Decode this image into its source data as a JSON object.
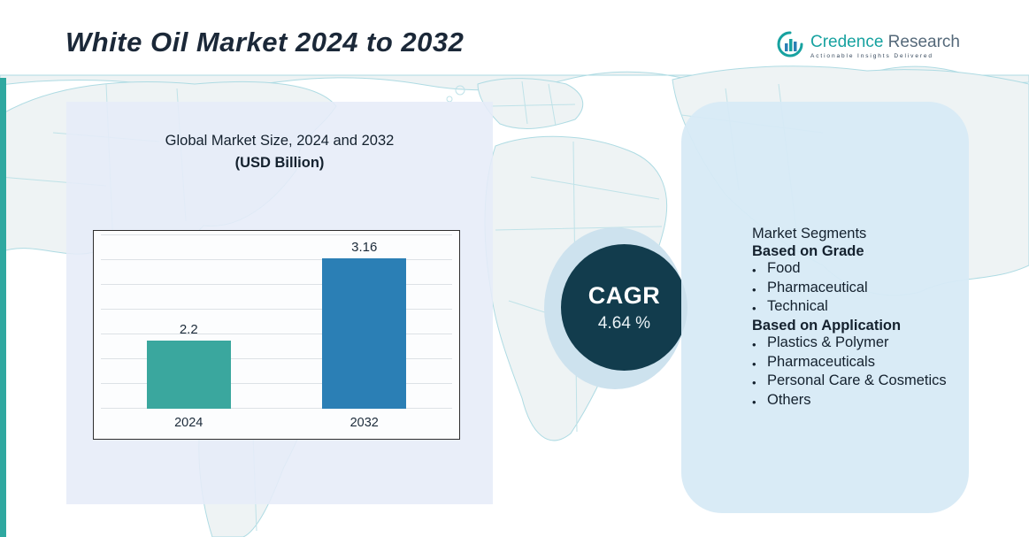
{
  "header": {
    "title": "White Oil Market 2024 to 2032"
  },
  "logo": {
    "brand_primary": "Credence",
    "brand_secondary": " Research",
    "tagline": "Actionable Insights Delivered"
  },
  "chart_heading": {
    "line1": "Global Market Size, 2024 and 2032",
    "line2": "(USD Billion)"
  },
  "chart_data": {
    "type": "bar",
    "categories": [
      "2024",
      "2032"
    ],
    "values": [
      2.2,
      3.16
    ],
    "title": "Global Market Size, 2024 and 2032 (USD Billion)",
    "xlabel": "",
    "ylabel": "",
    "ylim": [
      0,
      3.5
    ],
    "grid": "horizontal",
    "legend": "none",
    "bar_colors": [
      "#3aa79e",
      "#2b7fb5"
    ]
  },
  "cagr": {
    "label": "CAGR",
    "value": "4.64 %"
  },
  "segments": {
    "heading": "Market Segments",
    "groups": [
      {
        "title": "Based on Grade",
        "items": [
          "Food",
          "Pharmaceutical",
          "Technical"
        ]
      },
      {
        "title": "Based on Application",
        "items": [
          "Plastics & Polymer",
          "Pharmaceuticals",
          "Personal Care & Cosmetics",
          "Others"
        ]
      }
    ]
  },
  "colors": {
    "accent_teal": "#2fa8a0",
    "bar_2024": "#3aa79e",
    "bar_2032": "#2b7fb5",
    "cagr_circle": "#123c4d",
    "cagr_crescent": "#cde2ee",
    "left_panel": "#e6ecf8",
    "right_panel": "#d7eaf5",
    "map_line": "#aedbe3"
  }
}
